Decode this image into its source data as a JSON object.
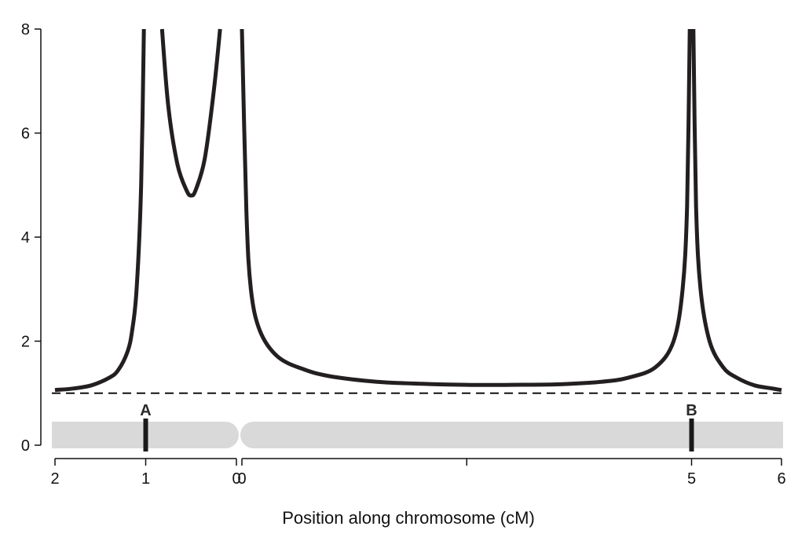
{
  "chart_data": {
    "type": "line",
    "title": "",
    "xlabel": "Position along chromosome (cM)",
    "ylabel": "",
    "ylim": [
      0,
      8
    ],
    "y_ticks": [
      0,
      2,
      4,
      6,
      8
    ],
    "grid": false,
    "legend": "none",
    "reference_line": {
      "y": 1,
      "style": "dashed"
    },
    "x_tick_labels": [
      "2",
      "1",
      "0",
      "0",
      "5",
      "6"
    ],
    "chromosome": {
      "arms": [
        {
          "name": "left-arm",
          "from_cM": 2,
          "to_cM": 0
        },
        {
          "name": "right-arm",
          "from_cM": 0,
          "to_cM": 6
        }
      ],
      "markers": [
        {
          "label": "A",
          "position_cM": 1,
          "arm": "left"
        },
        {
          "label": "B",
          "position_cM": 5,
          "arm": "right"
        }
      ]
    },
    "series": [
      {
        "segments": [
          {
            "x": [
              2,
              1.8,
              1.6,
              1.4,
              1.3,
              1.2,
              1.15,
              1.1,
              1.05,
              1.02
            ],
            "y": [
              1.06,
              1.09,
              1.15,
              1.3,
              1.45,
              1.8,
              2.2,
              3.0,
              5.0,
              8.0
            ]
          },
          {
            "x": [
              0.82,
              0.75,
              0.65,
              0.55,
              0.5,
              0.45,
              0.35,
              0.25,
              0.18
            ],
            "y": [
              8.0,
              6.5,
              5.4,
              4.9,
              4.8,
              4.9,
              5.5,
              6.8,
              8.0
            ]
          },
          {
            "x": [
              0.0,
              0.05,
              0.1,
              0.2,
              0.4,
              0.7,
              1.0,
              1.5,
              2.0,
              2.5,
              3.0,
              3.5,
              4.0,
              4.3,
              4.6,
              4.8,
              4.9,
              4.95,
              4.98
            ],
            "y": [
              8.0,
              4.5,
              3.0,
              2.2,
              1.7,
              1.45,
              1.32,
              1.22,
              1.18,
              1.16,
              1.16,
              1.17,
              1.22,
              1.3,
              1.5,
              2.0,
              3.0,
              4.6,
              8.0
            ]
          },
          {
            "x": [
              5.02,
              5.05,
              5.1,
              5.2,
              5.35,
              5.5,
              5.7,
              5.9,
              6.0
            ],
            "y": [
              8.0,
              4.6,
              3.0,
              2.0,
              1.5,
              1.3,
              1.15,
              1.09,
              1.06
            ]
          }
        ]
      }
    ]
  }
}
